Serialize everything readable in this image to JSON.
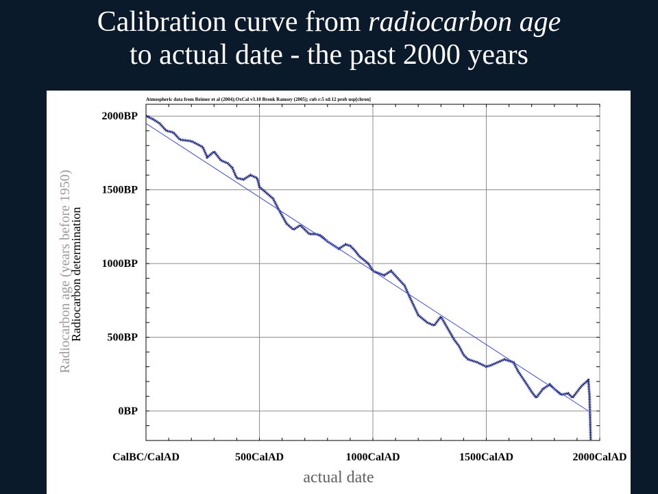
{
  "slide": {
    "title_part1": "Calibration curve from ",
    "title_italic": "radiocarbon age",
    "title_line2": "to actual date - the past 2000 years",
    "outer_ylabel": "Radiocarbon age (years before 1950)",
    "outer_xlabel": "actual date"
  },
  "chart_data": {
    "type": "line",
    "annotation": "Atmospheric data from Reimer et al (2004);OxCal v3.10 Bronk Ramsey (2005); cub r:5 sd:12 prob usp[chron]",
    "ylabel": "Radiocarbon determination",
    "x_ticks": [
      "CalBC/CalAD",
      "500CalAD",
      "1000CalAD",
      "1500CalAD",
      "2000CalAD"
    ],
    "x_tick_values": [
      0,
      500,
      1000,
      1500,
      2000
    ],
    "y_ticks": [
      "2000BP",
      "1500BP",
      "1000BP",
      "500BP",
      "0BP"
    ],
    "y_tick_values": [
      2000,
      1500,
      1000,
      500,
      0
    ],
    "xlim": [
      0,
      2000
    ],
    "ylim": [
      -200,
      2080
    ],
    "grid": true,
    "series": [
      {
        "color": "#1a237e",
        "x": [
          0,
          30,
          60,
          90,
          120,
          150,
          200,
          250,
          270,
          300,
          330,
          360,
          380,
          400,
          430,
          460,
          490,
          500,
          530,
          560,
          580,
          620,
          650,
          680,
          720,
          750,
          770,
          800,
          850,
          880,
          900,
          920,
          940,
          980,
          1000,
          1050,
          1080,
          1110,
          1140,
          1160,
          1200,
          1240,
          1270,
          1300,
          1330,
          1360,
          1380,
          1400,
          1420,
          1460,
          1500,
          1520,
          1550,
          1580,
          1620,
          1640,
          1670,
          1700,
          1720,
          1750,
          1780,
          1800,
          1830,
          1860,
          1880,
          1920,
          1950,
          1955,
          1960
        ],
        "y": [
          2000,
          1980,
          1950,
          1900,
          1890,
          1840,
          1830,
          1790,
          1720,
          1760,
          1700,
          1680,
          1650,
          1580,
          1570,
          1600,
          1580,
          1520,
          1480,
          1440,
          1380,
          1270,
          1230,
          1260,
          1200,
          1200,
          1190,
          1150,
          1100,
          1130,
          1120,
          1090,
          1050,
          1000,
          950,
          920,
          950,
          900,
          850,
          780,
          650,
          600,
          580,
          640,
          560,
          480,
          440,
          380,
          350,
          330,
          300,
          310,
          330,
          350,
          330,
          270,
          200,
          130,
          90,
          150,
          180,
          150,
          110,
          120,
          90,
          170,
          210,
          100,
          -200
        ]
      },
      {
        "color": "#3a4ad8",
        "x": [
          0,
          1950
        ],
        "y": [
          1950,
          0
        ]
      }
    ]
  }
}
